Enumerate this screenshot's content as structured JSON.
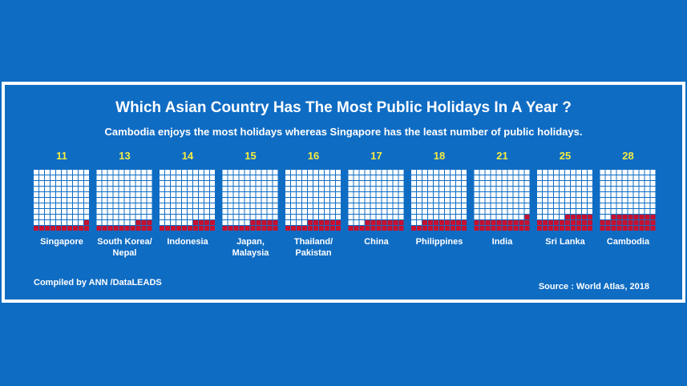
{
  "chart_data": {
    "type": "waffle",
    "title": "Which Asian Country Has The Most Public Holidays In A Year ?",
    "subtitle": "Cambodia enjoys the most holidays whereas Singapore has the least number of public holidays.",
    "categories": [
      "Singapore",
      "South Korea/ Nepal",
      "Indonesia",
      "Japan, Malaysia",
      "Thailand/ Pakistan",
      "China",
      "Philippines",
      "India",
      "Sri Lanka",
      "Cambodia"
    ],
    "values": [
      11,
      13,
      14,
      15,
      16,
      17,
      18,
      21,
      25,
      28
    ],
    "color": "#c8102e",
    "credit": "Compiled by ANN /DataLEADS",
    "source": "Source : World Atlas, 2018"
  }
}
